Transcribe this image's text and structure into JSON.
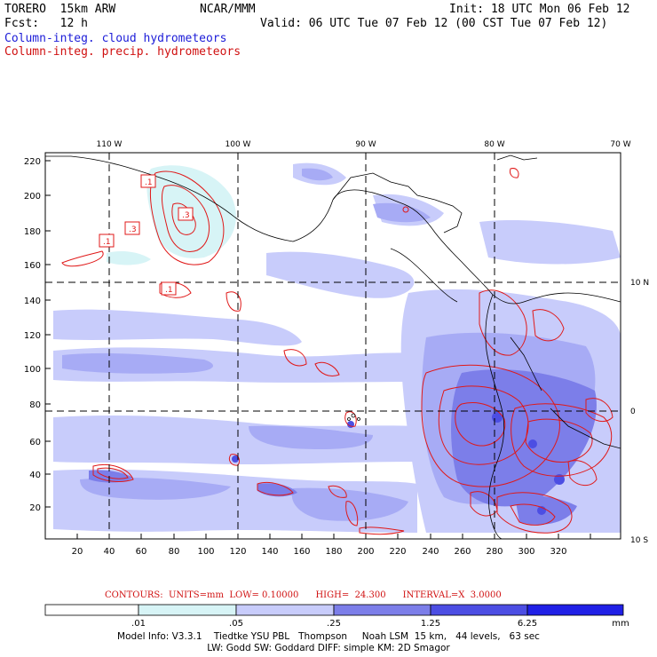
{
  "header": {
    "model": "TORERO  15km ARW",
    "org": "NCAR/MMM",
    "init": "Init: 18 UTC Mon 06 Feb 12",
    "fcst": "Fcst:   12 h",
    "valid": "Valid: 06 UTC Tue 07 Feb 12 (00 CST Tue 07 Feb 12)",
    "field1": "Column-integ. cloud hydrometeors",
    "field2": "Column-integ. precip. hydrometeors"
  },
  "map": {
    "x_ticks": [
      "20",
      "40",
      "60",
      "80",
      "100",
      "120",
      "140",
      "160",
      "180",
      "200",
      "220",
      "240",
      "260",
      "280",
      "300",
      "320"
    ],
    "y_ticks": [
      "20",
      "40",
      "60",
      "80",
      "100",
      "120",
      "140",
      "160",
      "180",
      "200",
      "220"
    ],
    "lon_labels": [
      "110 W",
      "100 W",
      "90 W",
      "80 W",
      "70 W"
    ],
    "lat_labels": [
      "10 N",
      "0",
      "10 S"
    ],
    "contour_labels": [
      ".1",
      ".3",
      ".3",
      ".1",
      ".1"
    ]
  },
  "contours_info": "CONTOURS:  UNITS=mm  LOW= 0.10000      HIGH=  24.300      INTERVAL=X  3.0000",
  "colorbar": {
    "thresholds": [
      ".01",
      ".05",
      ".25",
      "1.25",
      "6.25"
    ],
    "units": "mm",
    "colors": [
      "#ffffff",
      "#d7f4f6",
      "#c8ccfb",
      "#a7abf5",
      "#7c7ee9",
      "#4c4ee3",
      "#2020e6"
    ]
  },
  "footer": {
    "line1": "Model Info: V3.3.1    Tiedtke YSU PBL   Thompson     Noah LSM  15 km,   44 levels,   63 sec",
    "line2": "LW: Godd SW: Goddard DIFF: simple KM: 2D Smagor"
  }
}
